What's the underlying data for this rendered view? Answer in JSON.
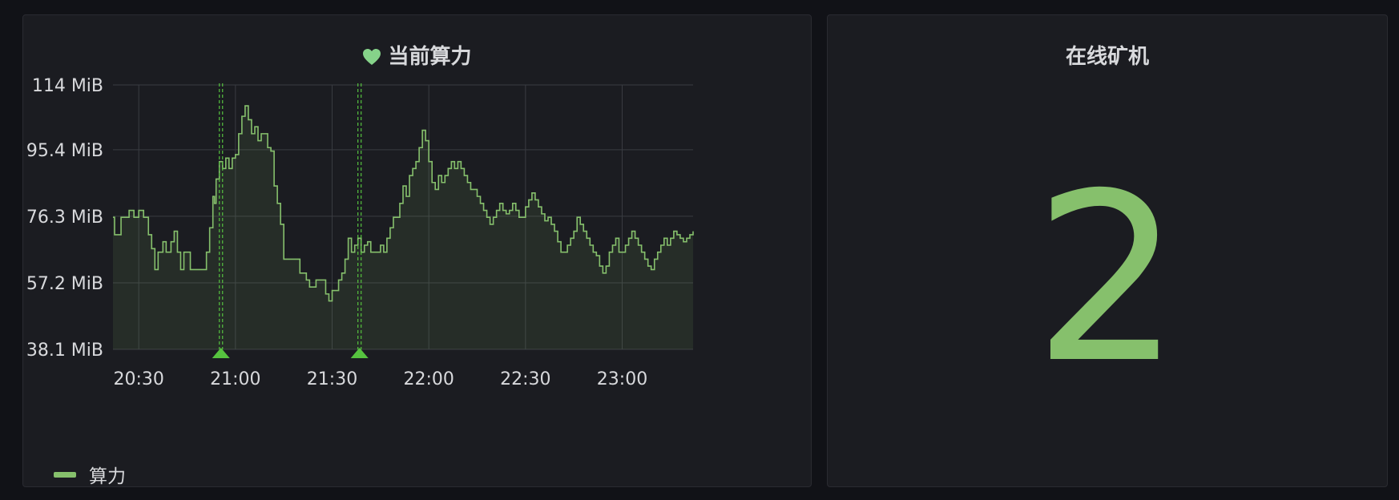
{
  "colors": {
    "series": "#86c06c",
    "annotation": "#56c23f",
    "grid": "#3a3c42",
    "axis_text": "#d8d9dc",
    "stat": "#86c06c"
  },
  "left_panel": {
    "title": "当前算力",
    "title_icon": "heart-icon"
  },
  "right_panel": {
    "title": "在线矿机",
    "value": "2"
  },
  "chart_data": {
    "type": "area",
    "ylim": [
      38.1,
      114
    ],
    "y_ticks": [
      "38.1 MiB",
      "57.2 MiB",
      "76.3 MiB",
      "95.4 MiB",
      "114 MiB"
    ],
    "y_tick_values": [
      38.1,
      57.2,
      76.3,
      95.4,
      114
    ],
    "x_ticks": [
      "20:30",
      "21:00",
      "21:30",
      "22:00",
      "22:30",
      "23:00"
    ],
    "x_tick_minutes": [
      1230,
      1260,
      1290,
      1320,
      1350,
      1380
    ],
    "xlim_minutes": [
      1222,
      1402
    ],
    "grid": true,
    "legend_position": "bottom-left",
    "annotation_times_minutes": [
      1255.5,
      1298.5
    ],
    "series": [
      {
        "name": "算力",
        "x_minutes": [
          1222,
          1222.5,
          1224.5,
          1227,
          1228.5,
          1230,
          1231.5,
          1233,
          1234,
          1235,
          1236,
          1237.5,
          1238.5,
          1240,
          1241,
          1242,
          1243,
          1244,
          1246,
          1247,
          1248,
          1249,
          1251,
          1252,
          1253,
          1253.5,
          1254,
          1255,
          1256,
          1257,
          1258,
          1259,
          1260,
          1261,
          1262,
          1263,
          1264,
          1265,
          1266,
          1267,
          1268,
          1270,
          1271,
          1272,
          1273,
          1274,
          1275,
          1277,
          1278,
          1279,
          1280,
          1282,
          1283,
          1285,
          1288,
          1289,
          1290,
          1292,
          1293,
          1294,
          1295,
          1296,
          1297,
          1298,
          1299,
          1300,
          1301,
          1302,
          1303,
          1304,
          1305,
          1306,
          1307,
          1308,
          1309,
          1310,
          1311,
          1312,
          1313,
          1314,
          1315,
          1316,
          1317,
          1318,
          1319,
          1320,
          1321,
          1322,
          1323,
          1324,
          1325,
          1326,
          1327,
          1328,
          1329,
          1330,
          1331,
          1332,
          1333,
          1334,
          1335,
          1336,
          1337,
          1338,
          1339,
          1340,
          1341,
          1342,
          1343,
          1344,
          1345,
          1346,
          1347,
          1348,
          1349,
          1350,
          1351,
          1352,
          1353,
          1354,
          1355,
          1356,
          1357,
          1358,
          1359,
          1360,
          1361,
          1362,
          1363,
          1364,
          1365,
          1366,
          1367,
          1368,
          1369,
          1370,
          1371,
          1372,
          1373,
          1374,
          1375,
          1376,
          1377,
          1378,
          1379,
          1380,
          1381,
          1382,
          1383,
          1384,
          1385,
          1386,
          1387,
          1388,
          1389,
          1390,
          1391,
          1392,
          1393,
          1394,
          1395,
          1396,
          1397,
          1398,
          1399,
          1400,
          1401,
          1402
        ],
        "values": [
          76,
          71,
          76,
          78,
          76,
          78,
          76,
          71,
          67,
          61,
          66,
          69,
          66,
          69,
          72,
          66,
          61,
          66,
          61,
          61,
          61,
          61,
          66,
          73,
          82,
          80,
          87,
          92,
          90,
          93,
          90,
          93,
          94,
          100,
          105,
          108,
          104,
          100,
          102,
          98,
          100,
          96,
          95,
          85,
          80,
          74,
          64,
          64,
          64,
          64,
          60,
          58,
          56,
          58,
          54,
          52,
          55,
          58,
          60,
          64,
          70,
          66,
          68,
          70,
          66,
          68,
          69,
          66,
          66,
          66,
          68,
          66,
          70,
          73,
          76,
          76,
          80,
          85,
          82,
          88,
          90,
          92,
          96,
          101,
          98,
          92,
          86,
          84,
          88,
          86,
          88,
          90,
          92,
          90,
          92,
          90,
          88,
          86,
          84,
          84,
          82,
          80,
          78,
          76,
          74,
          76,
          78,
          80,
          78,
          77,
          78,
          80,
          78,
          76,
          76,
          79,
          81,
          83,
          81,
          79,
          77,
          75,
          76,
          74,
          72,
          69,
          66,
          66,
          68,
          70,
          72,
          76,
          74,
          72,
          70,
          68,
          66,
          65,
          62,
          60,
          62,
          66,
          68,
          70,
          66,
          66,
          68,
          70,
          72,
          70,
          68,
          66,
          64,
          62,
          61,
          64,
          66,
          68,
          70,
          68,
          70,
          72,
          71,
          70,
          69,
          70,
          71,
          72
        ]
      }
    ]
  }
}
